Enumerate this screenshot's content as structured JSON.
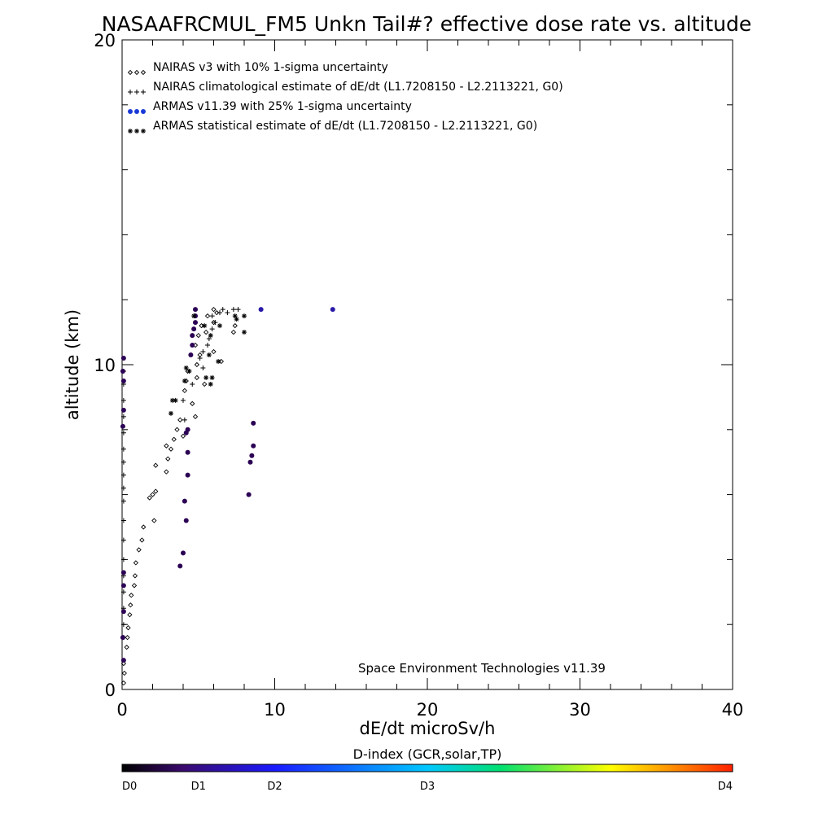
{
  "chart_data": {
    "type": "scatter",
    "title": "NASAAFRCMUL_FM5 Unkn Tail#? effective dose rate vs. altitude",
    "xlabel": "dE/dt microSv/h",
    "ylabel": "altitude (km)",
    "xlim": [
      0,
      40
    ],
    "ylim": [
      0,
      20
    ],
    "x_ticks": [
      0,
      10,
      20,
      30,
      40
    ],
    "y_ticks": [
      0,
      10,
      20
    ],
    "x_tick_labels": [
      "0",
      "10",
      "20",
      "30",
      "40"
    ],
    "y_tick_labels": [
      "0",
      "10",
      "20"
    ],
    "annotation": "Space Environment Technologies v11.39",
    "legend": {
      "placement": "top-left",
      "entries": [
        "NAIRAS v3 with 10% 1-sigma uncertainty",
        "NAIRAS climatological estimate of dE/dt (L1.7208150 - L2.2113221, G0)",
        "ARMAS v11.39 with 25% 1-sigma uncertainty",
        "ARMAS statistical estimate of dE/dt (L1.7208150 - L2.2113221, G0)"
      ]
    },
    "series": [
      {
        "name": "NAIRAS v3 with 10% 1-sigma uncertainty",
        "marker": "diamond",
        "color": "#000000",
        "points": [
          [
            0.1,
            0.2
          ],
          [
            0.15,
            0.5
          ],
          [
            0.1,
            0.8
          ],
          [
            0.3,
            1.3
          ],
          [
            0.35,
            1.6
          ],
          [
            0.4,
            1.9
          ],
          [
            0.5,
            2.3
          ],
          [
            0.55,
            2.6
          ],
          [
            0.6,
            2.9
          ],
          [
            0.8,
            3.2
          ],
          [
            0.85,
            3.5
          ],
          [
            0.9,
            3.9
          ],
          [
            1.1,
            4.3
          ],
          [
            1.3,
            4.6
          ],
          [
            1.4,
            5.0
          ],
          [
            2.1,
            5.2
          ],
          [
            1.8,
            5.9
          ],
          [
            2.0,
            6.0
          ],
          [
            2.2,
            6.1
          ],
          [
            2.9,
            6.7
          ],
          [
            2.2,
            6.9
          ],
          [
            3.0,
            7.1
          ],
          [
            3.2,
            7.4
          ],
          [
            2.9,
            7.5
          ],
          [
            3.4,
            7.7
          ],
          [
            4.0,
            7.8
          ],
          [
            3.6,
            8.0
          ],
          [
            3.8,
            8.3
          ],
          [
            4.8,
            8.4
          ],
          [
            4.6,
            8.8
          ],
          [
            4.1,
            9.2
          ],
          [
            4.2,
            9.5
          ],
          [
            4.3,
            9.8
          ],
          [
            4.9,
            9.6
          ],
          [
            5.4,
            9.4
          ],
          [
            4.9,
            10.0
          ],
          [
            5.1,
            10.3
          ],
          [
            6.5,
            10.1
          ],
          [
            4.8,
            10.6
          ],
          [
            5.0,
            10.9
          ],
          [
            5.5,
            11.0
          ],
          [
            6.0,
            10.4
          ],
          [
            7.3,
            11.0
          ],
          [
            7.4,
            11.2
          ],
          [
            5.2,
            11.2
          ],
          [
            6.0,
            11.3
          ],
          [
            5.6,
            11.5
          ],
          [
            6.0,
            11.7
          ],
          [
            6.2,
            11.6
          ]
        ]
      },
      {
        "name": "NAIRAS climatological estimate of dE/dt (L1.7208150 - L2.2113221, G0)",
        "marker": "plus",
        "color": "#000000",
        "points": [
          [
            0.1,
            1.6
          ],
          [
            0.1,
            2.0
          ],
          [
            0.1,
            2.5
          ],
          [
            0.1,
            3.0
          ],
          [
            0.1,
            3.5
          ],
          [
            0.1,
            4.0
          ],
          [
            0.1,
            4.6
          ],
          [
            0.1,
            5.2
          ],
          [
            0.1,
            5.8
          ],
          [
            0.1,
            6.2
          ],
          [
            0.1,
            6.6
          ],
          [
            0.1,
            7.0
          ],
          [
            0.1,
            7.4
          ],
          [
            0.1,
            7.9
          ],
          [
            0.1,
            8.4
          ],
          [
            0.1,
            8.9
          ],
          [
            0.1,
            9.4
          ],
          [
            0.1,
            9.8
          ],
          [
            4.1,
            8.3
          ],
          [
            4.0,
            8.9
          ],
          [
            4.6,
            9.4
          ],
          [
            4.4,
            9.8
          ],
          [
            5.3,
            9.9
          ],
          [
            5.1,
            10.2
          ],
          [
            5.3,
            10.4
          ],
          [
            5.6,
            10.6
          ],
          [
            5.7,
            10.8
          ],
          [
            5.9,
            11.1
          ],
          [
            6.1,
            11.3
          ],
          [
            5.9,
            11.5
          ],
          [
            6.4,
            11.6
          ],
          [
            6.6,
            11.7
          ],
          [
            6.9,
            11.6
          ],
          [
            7.3,
            11.7
          ],
          [
            7.6,
            11.7
          ]
        ]
      },
      {
        "name": "ARMAS v11.39 with 25% 1-sigma uncertainty",
        "marker": "dot",
        "color": "#2b0054",
        "points": [
          [
            0.1,
            10.2
          ],
          [
            0.05,
            9.8
          ],
          [
            0.1,
            9.5
          ],
          [
            0.1,
            8.6
          ],
          [
            0.05,
            8.1
          ],
          [
            0.1,
            3.6
          ],
          [
            0.1,
            3.2
          ],
          [
            0.1,
            2.4
          ],
          [
            0.05,
            1.6
          ],
          [
            0.1,
            0.9
          ],
          [
            3.8,
            3.8
          ],
          [
            4.0,
            4.2
          ],
          [
            4.2,
            5.2
          ],
          [
            4.1,
            5.8
          ],
          [
            4.3,
            6.6
          ],
          [
            4.3,
            7.3
          ],
          [
            4.2,
            7.9
          ],
          [
            4.3,
            8.0
          ],
          [
            4.5,
            10.3
          ],
          [
            4.6,
            10.6
          ],
          [
            4.6,
            10.9
          ],
          [
            4.7,
            11.1
          ],
          [
            4.8,
            11.3
          ],
          [
            4.8,
            11.5
          ],
          [
            4.8,
            11.7
          ],
          [
            8.3,
            6.0
          ],
          [
            8.4,
            7.0
          ],
          [
            8.5,
            7.2
          ],
          [
            8.6,
            7.5
          ],
          [
            8.6,
            8.2
          ],
          [
            9.1,
            11.7
          ],
          [
            13.8,
            11.7
          ]
        ]
      },
      {
        "name": "ARMAS statistical estimate of dE/dt (L1.7208150 - L2.2113221, G0)",
        "marker": "asterisk",
        "color": "#000000",
        "points": [
          [
            3.2,
            8.5
          ],
          [
            3.3,
            8.9
          ],
          [
            3.5,
            8.9
          ],
          [
            4.1,
            9.5
          ],
          [
            4.2,
            9.9
          ],
          [
            4.4,
            9.8
          ],
          [
            5.8,
            9.4
          ],
          [
            5.5,
            9.6
          ],
          [
            5.9,
            9.6
          ],
          [
            6.3,
            10.1
          ],
          [
            5.7,
            10.3
          ],
          [
            5.8,
            10.9
          ],
          [
            5.4,
            11.2
          ],
          [
            6.4,
            11.2
          ],
          [
            7.5,
            11.4
          ],
          [
            7.4,
            11.5
          ],
          [
            8.0,
            11.0
          ],
          [
            8.0,
            11.5
          ],
          [
            4.7,
            11.5
          ]
        ]
      }
    ],
    "colorbar": {
      "title": "D-index (GCR,solar,TP)",
      "ticks": [
        "D0",
        "D1",
        "D2",
        "D3",
        "D4"
      ],
      "tick_positions": [
        0,
        0.125,
        0.25,
        0.5,
        1.0
      ],
      "colors": [
        "#000000",
        "#3a0a6e",
        "#1a1aff",
        "#00c8ff",
        "#00e070",
        "#ffff00",
        "#ff2000"
      ]
    }
  }
}
